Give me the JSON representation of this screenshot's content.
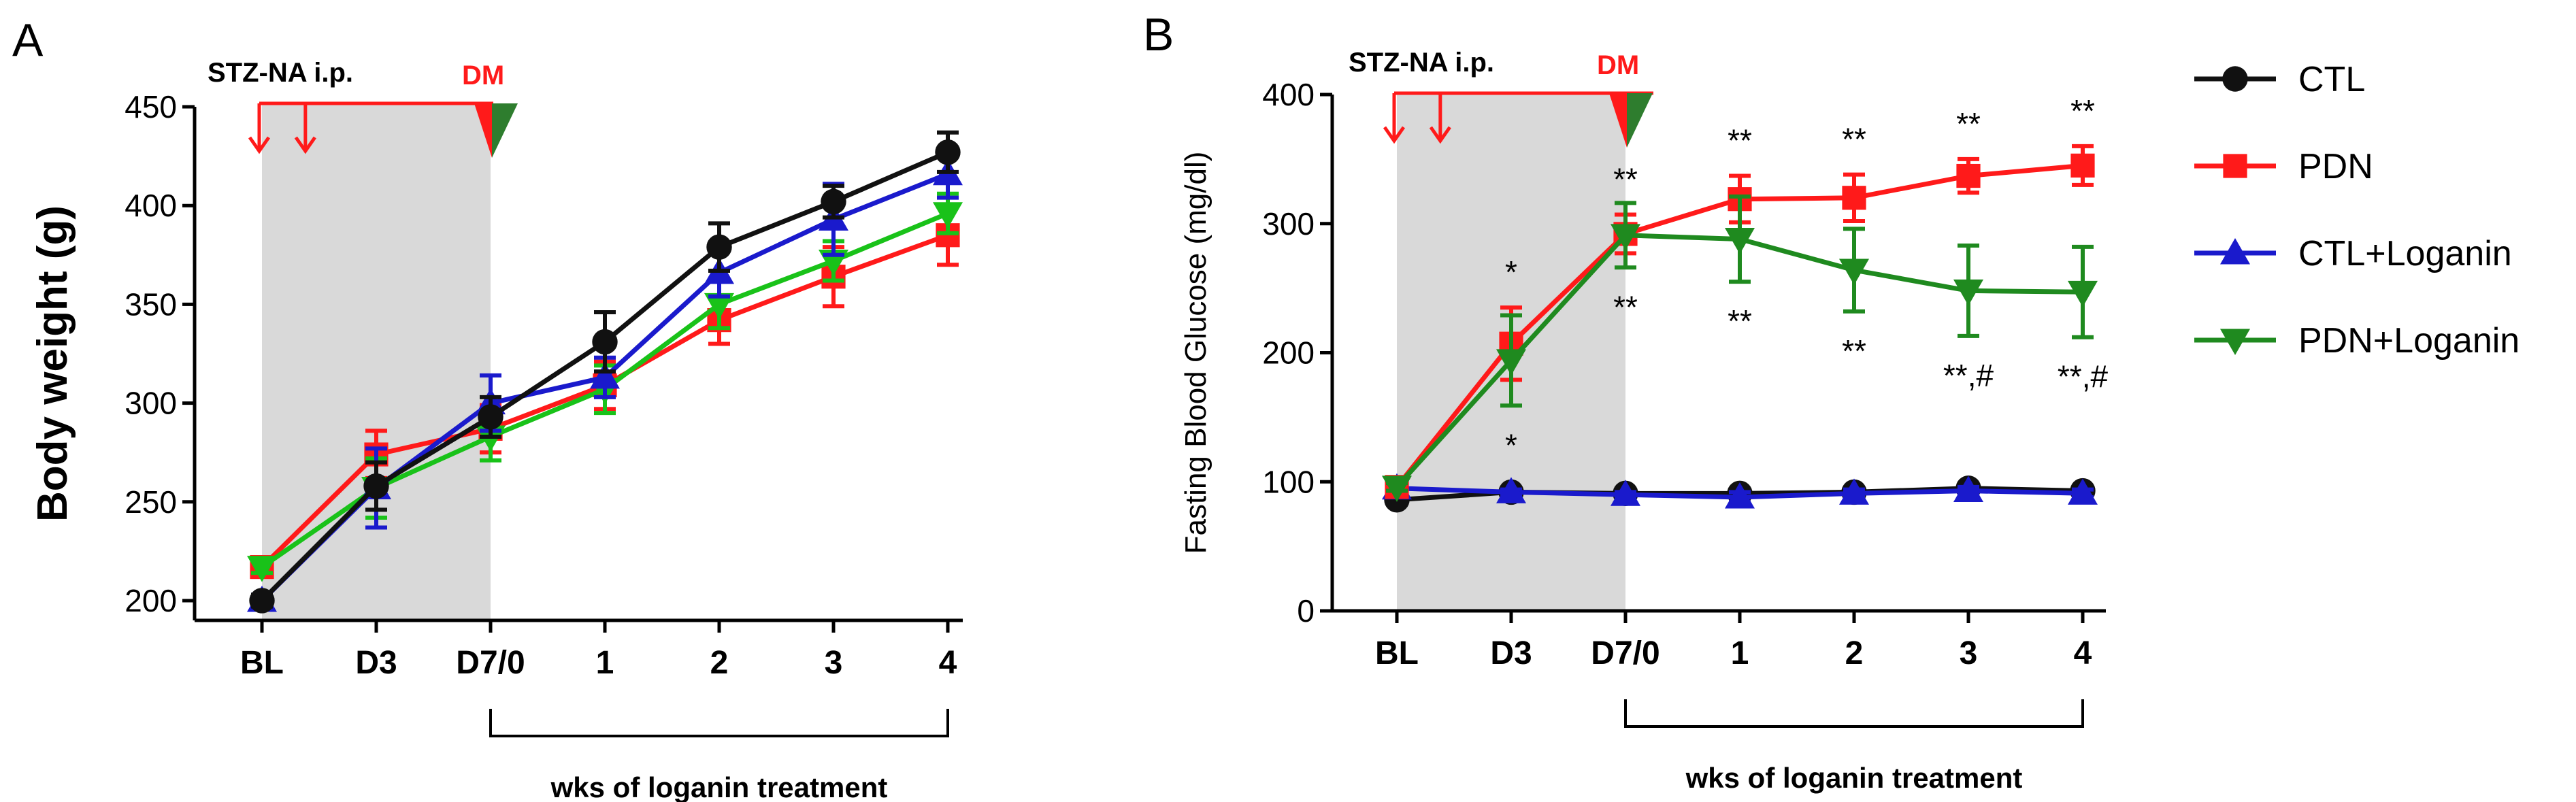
{
  "figure": {
    "panel_a_letter": "A",
    "panel_b_letter": "B"
  },
  "colors": {
    "CTL": "#111111",
    "PDN": "#ff1a1a",
    "CTL+Loganin": "#1a1acc",
    "PDN+Loganin": "#19c219",
    "PDN+Loganin_b": "#1f8a1f",
    "shade": "#d9d9d9",
    "protocol": "#ff1a1a",
    "triangle_green": "#2e7d2e"
  },
  "chart_data": [
    {
      "type": "line",
      "panel": "A",
      "title": "",
      "ylabel": "Body weight (g)",
      "xlabel": "wks of loganin treatment",
      "categories": [
        "BL",
        "D3",
        "D7/0",
        "1",
        "2",
        "3",
        "4"
      ],
      "ylim": [
        190,
        450
      ],
      "yticks": [
        200,
        250,
        300,
        350,
        400,
        450
      ],
      "protocol": {
        "label": "STZ-NA i.p.",
        "dm_label": "DM"
      },
      "series": [
        {
          "name": "CTL",
          "marker": "circle",
          "values": [
            200,
            258,
            293,
            331,
            379,
            402,
            427
          ],
          "err": [
            3,
            12,
            10,
            15,
            12,
            8,
            10
          ]
        },
        {
          "name": "PDN",
          "marker": "square",
          "values": [
            217,
            274,
            287,
            309,
            342,
            364,
            385
          ],
          "err": [
            3,
            12,
            12,
            12,
            12,
            15,
            15
          ]
        },
        {
          "name": "CTL+Loganin",
          "marker": "triangle-up",
          "values": [
            200,
            257,
            300,
            313,
            366,
            393,
            416
          ],
          "err": [
            3,
            20,
            14,
            10,
            12,
            18,
            12
          ]
        },
        {
          "name": "PDN+Loganin",
          "marker": "triangle-down",
          "values": [
            217,
            257,
            283,
            307,
            350,
            372,
            396
          ],
          "err": [
            3,
            15,
            12,
            12,
            12,
            10,
            10
          ]
        }
      ]
    },
    {
      "type": "line",
      "panel": "B",
      "title": "",
      "ylabel": "Fasting Blood Glucose (mg/dl)",
      "xlabel": "wks of loganin treatment",
      "categories": [
        "BL",
        "D3",
        "D7/0",
        "1",
        "2",
        "3",
        "4"
      ],
      "ylim": [
        0,
        400
      ],
      "yticks": [
        0,
        100,
        200,
        300,
        400
      ],
      "protocol": {
        "label": "STZ-NA i.p.",
        "dm_label": "DM"
      },
      "legend": [
        "CTL",
        "PDN",
        "CTL+Loganin",
        "PDN+Loganin"
      ],
      "series": [
        {
          "name": "CTL",
          "marker": "circle",
          "values": [
            86,
            92,
            91,
            91,
            92,
            95,
            93
          ],
          "err": [
            2,
            2,
            2,
            2,
            2,
            2,
            2
          ]
        },
        {
          "name": "PDN",
          "marker": "square",
          "values": [
            96,
            207,
            292,
            319,
            320,
            337,
            345
          ],
          "err": [
            3,
            28,
            15,
            18,
            18,
            13,
            15
          ]
        },
        {
          "name": "CTL+Loganin",
          "marker": "triangle-up",
          "values": [
            95,
            92,
            90,
            88,
            91,
            93,
            91
          ],
          "err": [
            2,
            2,
            2,
            4,
            3,
            3,
            3
          ]
        },
        {
          "name": "PDN+Loganin",
          "marker": "triangle-down",
          "values": [
            96,
            194,
            291,
            288,
            264,
            248,
            247
          ],
          "err": [
            3,
            35,
            25,
            33,
            32,
            35,
            35
          ]
        }
      ],
      "annotations": {
        "pdn_above": [
          "",
          "*",
          "**",
          "**",
          "**",
          "**",
          "**"
        ],
        "pdnlog_below": [
          "",
          "*",
          "**",
          "**",
          "**",
          "**,#",
          "**,#"
        ]
      }
    }
  ]
}
